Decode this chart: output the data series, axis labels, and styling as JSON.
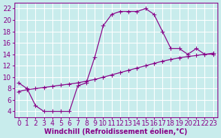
{
  "xlabel": "Windchill (Refroidissement éolien,°C)",
  "bg_color": "#c8ecec",
  "grid_color": "#ffffff",
  "line_color": "#880088",
  "line1_x": [
    0,
    1,
    2,
    3,
    4,
    5,
    6,
    7,
    8,
    9,
    10,
    11,
    12,
    13,
    14,
    15,
    16,
    17,
    18,
    19,
    20,
    21,
    22,
    23
  ],
  "line1_y": [
    9.0,
    8.0,
    5.0,
    4.0,
    4.0,
    4.0,
    4.0,
    8.5,
    9.0,
    13.5,
    19.0,
    21.0,
    21.5,
    21.5,
    21.5,
    22.0,
    21.0,
    18.0,
    15.0,
    15.0,
    14.0,
    15.0,
    14.0,
    14.0
  ],
  "line2_x": [
    0,
    1,
    2,
    3,
    4,
    5,
    6,
    7,
    8,
    9,
    10,
    11,
    12,
    13,
    14,
    15,
    16,
    17,
    18,
    19,
    20,
    21,
    22,
    23
  ],
  "line2_y": [
    7.5,
    7.8,
    8.0,
    8.2,
    8.4,
    8.6,
    8.8,
    9.0,
    9.3,
    9.6,
    10.0,
    10.4,
    10.8,
    11.2,
    11.6,
    12.0,
    12.4,
    12.8,
    13.1,
    13.4,
    13.6,
    13.8,
    14.0,
    14.2
  ],
  "xlim": [
    -0.5,
    23.5
  ],
  "ylim": [
    3,
    23
  ],
  "yticks": [
    4,
    6,
    8,
    10,
    12,
    14,
    16,
    18,
    20,
    22
  ],
  "xticks": [
    0,
    1,
    2,
    3,
    4,
    5,
    6,
    7,
    8,
    9,
    10,
    11,
    12,
    13,
    14,
    15,
    16,
    17,
    18,
    19,
    20,
    21,
    22,
    23
  ],
  "fontsize": 7,
  "markersize": 3
}
